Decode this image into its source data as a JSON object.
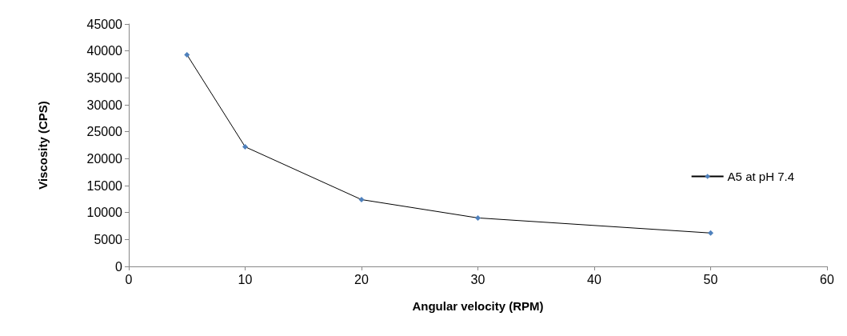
{
  "chart_data": {
    "type": "line",
    "xlabel": "Angular velocity (RPM)",
    "ylabel": "Viscosity (CPS)",
    "x": [
      5,
      10,
      20,
      30,
      50
    ],
    "series": [
      {
        "name": "A5 at pH 7.4",
        "color": "#000000",
        "values": [
          39300,
          22200,
          12400,
          9000,
          6200
        ]
      }
    ],
    "xlim": [
      0,
      60
    ],
    "xticks": [
      0,
      10,
      20,
      30,
      40,
      50,
      60
    ],
    "ylim": [
      0,
      45000
    ],
    "yticks": [
      0,
      5000,
      10000,
      15000,
      20000,
      25000,
      30000,
      35000,
      40000,
      45000
    ],
    "grid": false,
    "legend": "right",
    "marker": "diamond",
    "line_style": "solid"
  }
}
